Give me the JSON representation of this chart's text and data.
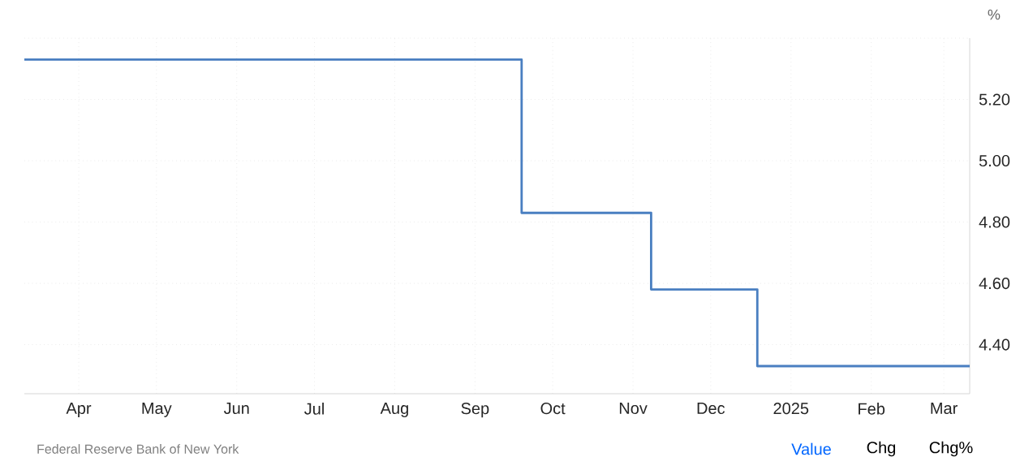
{
  "chart_data": {
    "type": "step",
    "x": [
      "2024-03-11",
      "2024-09-19",
      "2024-11-08",
      "2024-12-19",
      "2025-03-11"
    ],
    "values": [
      5.33,
      4.83,
      4.58,
      4.33,
      4.33
    ],
    "color": "#4a7fc1",
    "ylabel": "%",
    "xlim": [
      "2024-03-11",
      "2025-03-11"
    ],
    "ylim": [
      4.24,
      5.4
    ],
    "xticks": [
      {
        "value": "2024-04-01",
        "label": "Apr"
      },
      {
        "value": "2024-05-01",
        "label": "May"
      },
      {
        "value": "2024-06-01",
        "label": "Jun"
      },
      {
        "value": "2024-07-01",
        "label": "Jul"
      },
      {
        "value": "2024-08-01",
        "label": "Aug"
      },
      {
        "value": "2024-09-01",
        "label": "Sep"
      },
      {
        "value": "2024-10-01",
        "label": "Oct"
      },
      {
        "value": "2024-11-01",
        "label": "Nov"
      },
      {
        "value": "2024-12-01",
        "label": "Dec"
      },
      {
        "value": "2025-01-01",
        "label": "2025"
      },
      {
        "value": "2025-02-01",
        "label": "Feb"
      },
      {
        "value": "2025-03-01",
        "label": "Mar"
      }
    ],
    "yticks": [
      {
        "value": 4.4,
        "label": "4.40"
      },
      {
        "value": 4.6,
        "label": "4.60"
      },
      {
        "value": 4.8,
        "label": "4.80"
      },
      {
        "value": 5.0,
        "label": "5.00"
      },
      {
        "value": 5.2,
        "label": "5.20"
      },
      {
        "value": 5.4,
        "label": null
      }
    ],
    "grid": true,
    "annotations": [
      "Federal Reserve Bank of New York",
      "Value",
      "Chg",
      "Chg%"
    ]
  }
}
